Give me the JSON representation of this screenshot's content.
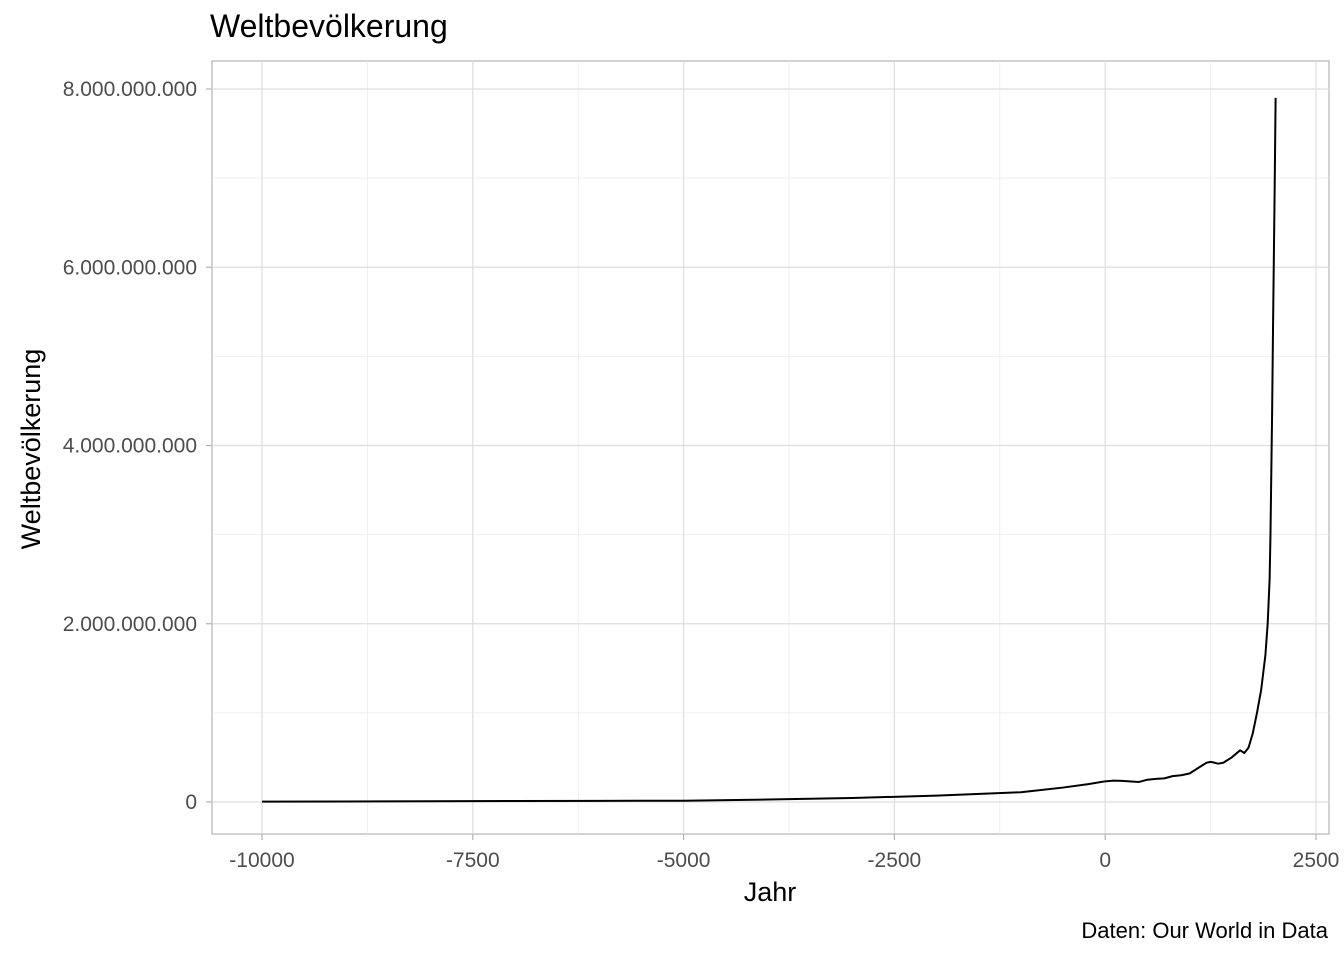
{
  "chart_data": {
    "type": "line",
    "title": "Weltbevölkerung",
    "xlabel": "Jahr",
    "ylabel": "Weltbevölkerung",
    "caption": "Daten: Our World in Data",
    "xlim": [
      -10000,
      2500
    ],
    "ylim": [
      0,
      8000000000
    ],
    "x_ticks": [
      -10000,
      -7500,
      -5000,
      -2500,
      0,
      2500
    ],
    "x_tick_labels": [
      "-10000",
      "-7500",
      "-5000",
      "-2500",
      "0",
      "2500"
    ],
    "y_ticks": [
      0,
      2000000000,
      4000000000,
      6000000000,
      8000000000
    ],
    "y_tick_labels": [
      "0",
      "2.000.000.000",
      "4.000.000.000",
      "6.000.000.000",
      "8.000.000.000"
    ],
    "grid": true,
    "line_color": "#000000",
    "series": [
      {
        "x": [
          -10000,
          -9000,
          -8000,
          -7000,
          -6000,
          -5000,
          -4000,
          -3000,
          -2000,
          -1000,
          -500,
          -200,
          0,
          100,
          200,
          400,
          500,
          600,
          700,
          800,
          900,
          1000,
          1100,
          1200,
          1250,
          1300,
          1340,
          1400,
          1500,
          1600,
          1650,
          1700,
          1750,
          1800,
          1850,
          1900,
          1927,
          1950,
          1960,
          1970,
          1980,
          1990,
          2000,
          2010,
          2021
        ],
        "y": [
          4000000,
          6000000,
          8000000,
          11000000,
          13000000,
          14000000,
          28000000,
          45000000,
          72000000,
          110000000,
          162000000,
          200000000,
          232000000,
          240000000,
          237000000,
          225000000,
          250000000,
          260000000,
          265000000,
          290000000,
          300000000,
          320000000,
          380000000,
          440000000,
          450000000,
          440000000,
          430000000,
          440000000,
          500000000,
          580000000,
          550000000,
          610000000,
          770000000,
          1000000000,
          1260000000,
          1650000000,
          2000000000,
          2500000000,
          3000000000,
          3700000000,
          4400000000,
          5300000000,
          6100000000,
          6900000000,
          7900000000
        ]
      }
    ]
  }
}
